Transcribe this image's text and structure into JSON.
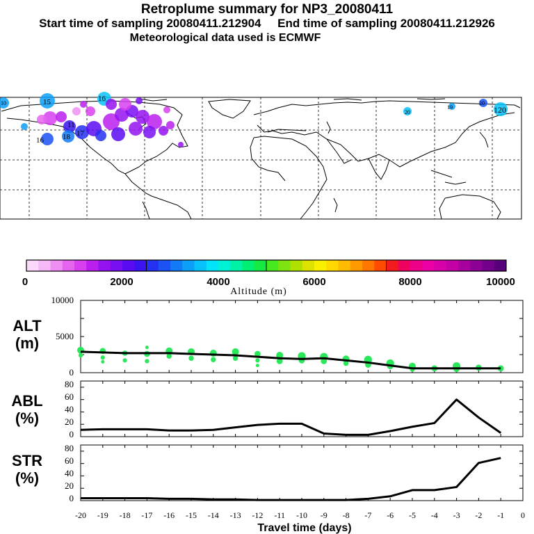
{
  "header": {
    "title": "Retroplume summary for NP3_20080411",
    "sampling_line": "Start time of sampling 20080411.212904     End time of sampling 20080411.212926",
    "met_line": "Meteorological data used is ECMWF"
  },
  "colorbar": {
    "ticks": [
      "0",
      "2000",
      "4000",
      "6000",
      "8000",
      "10000"
    ],
    "label": "Altitude (m)",
    "colors": [
      "#fbd9fb",
      "#f6b9f7",
      "#f08ff3",
      "#e665ef",
      "#d73ff0",
      "#bb1fee",
      "#9412f0",
      "#7a0ef3",
      "#5b0bf1",
      "#3914ef",
      "#2430f2",
      "#1a52f4",
      "#127af7",
      "#0c9ff8",
      "#07c2fa",
      "#03e3fb",
      "#00f2d6",
      "#00f2a6",
      "#00ef72",
      "#14ea42",
      "#47e81f",
      "#7ee30e",
      "#b0e000",
      "#dde200",
      "#f9ef00",
      "#ffd800",
      "#ffbb00",
      "#ff9b00",
      "#ff7600",
      "#ff4b00",
      "#f41b20",
      "#f0005f",
      "#ef0088",
      "#ea00a4",
      "#d800a8",
      "#c200a4",
      "#a8009f",
      "#8c0096",
      "#72008a",
      "#58007a"
    ],
    "dividers": [
      10,
      20,
      30
    ]
  },
  "map": {
    "labels": [
      "15",
      "16",
      "19",
      "18",
      "17",
      "11",
      "20",
      "19",
      "20",
      "18",
      "19",
      "20",
      "120",
      "10"
    ]
  },
  "panels": {
    "alt": {
      "label_line1": "ALT",
      "label_line2": "(m)",
      "yticks": [
        "10000",
        "5000",
        "0"
      ]
    },
    "abl": {
      "label_line1": "ABL",
      "label_line2": "(%)",
      "yticks": [
        "80",
        "60",
        "40",
        "20",
        "0"
      ]
    },
    "str": {
      "label_line1": "STR",
      "label_line2": "(%)",
      "yticks": [
        "80",
        "60",
        "40",
        "20",
        "0"
      ]
    }
  },
  "xaxis": {
    "label": "Travel time (days)",
    "ticks": [
      "-20",
      "-19",
      "-18",
      "-17",
      "-16",
      "-15",
      "-14",
      "-13",
      "-12",
      "-11",
      "-10",
      "-9",
      "-8",
      "-7",
      "-6",
      "-5",
      "-4",
      "-3",
      "-2",
      "-1",
      "0"
    ]
  },
  "chart_data": [
    {
      "type": "line",
      "title": "ALT",
      "xlabel": "Travel time (days)",
      "ylabel": "Altitude (m)",
      "xlim": [
        -20,
        0
      ],
      "ylim": [
        0,
        10000
      ],
      "x": [
        -20,
        -19,
        -18,
        -17,
        -16,
        -15,
        -14,
        -13,
        -12,
        -11,
        -10,
        -9,
        -8,
        -7,
        -6,
        -5,
        -4,
        -3,
        -2,
        -1
      ],
      "values": [
        2900,
        2800,
        2700,
        2700,
        2700,
        2600,
        2500,
        2400,
        2200,
        2000,
        1900,
        2000,
        1700,
        1400,
        1000,
        600,
        600,
        600,
        600,
        600
      ],
      "scatter": {
        "x": [
          -20,
          -20,
          -19,
          -19,
          -19,
          -18,
          -18,
          -17,
          -17,
          -17,
          -16,
          -16,
          -15,
          -15,
          -14,
          -14,
          -13,
          -13,
          -12,
          -12,
          -12,
          -11,
          -11,
          -10,
          -10,
          -9,
          -9,
          -8,
          -8,
          -7,
          -7,
          -6,
          -6,
          -5,
          -5,
          -4,
          -3,
          -3,
          -2,
          -1
        ],
        "y": [
          3100,
          2400,
          3000,
          2100,
          1500,
          2700,
          1700,
          3500,
          2600,
          1600,
          3000,
          2300,
          2900,
          2000,
          2700,
          1800,
          2900,
          2000,
          2600,
          1700,
          1000,
          2400,
          1600,
          2300,
          1700,
          2200,
          1600,
          1900,
          1300,
          1800,
          1100,
          1300,
          900,
          900,
          500,
          600,
          900,
          500,
          700,
          600
        ],
        "size": [
          8,
          5,
          7,
          5,
          4,
          6,
          5,
          4,
          7,
          5,
          8,
          6,
          8,
          6,
          8,
          6,
          8,
          6,
          7,
          5,
          4,
          8,
          7,
          9,
          7,
          9,
          7,
          8,
          6,
          9,
          7,
          9,
          7,
          8,
          6,
          7,
          9,
          7,
          7,
          7
        ]
      }
    },
    {
      "type": "line",
      "title": "ABL",
      "xlabel": "Travel time (days)",
      "ylabel": "ABL (%)",
      "xlim": [
        -20,
        0
      ],
      "ylim": [
        0,
        90
      ],
      "x": [
        -20,
        -19,
        -18,
        -17,
        -16,
        -15,
        -14,
        -13,
        -12,
        -11,
        -10,
        -9,
        -8,
        -7,
        -6,
        -5,
        -4,
        -3,
        -2,
        -1
      ],
      "values": [
        11,
        12,
        12,
        12,
        10,
        10,
        11,
        15,
        19,
        21,
        21,
        5,
        3,
        3,
        9,
        16,
        22,
        60,
        31,
        6
      ]
    },
    {
      "type": "line",
      "title": "STR",
      "xlabel": "Travel time (days)",
      "ylabel": "STR (%)",
      "xlim": [
        -20,
        0
      ],
      "ylim": [
        0,
        90
      ],
      "x": [
        -20,
        -19,
        -18,
        -17,
        -16,
        -15,
        -14,
        -13,
        -12,
        -11,
        -10,
        -9,
        -8,
        -7,
        -6,
        -5,
        -4,
        -3,
        -2,
        -1
      ],
      "values": [
        4,
        4,
        4,
        4,
        3,
        3,
        2,
        2,
        1,
        1,
        1,
        1,
        1,
        3,
        7,
        17,
        17,
        22,
        61,
        69
      ]
    }
  ]
}
